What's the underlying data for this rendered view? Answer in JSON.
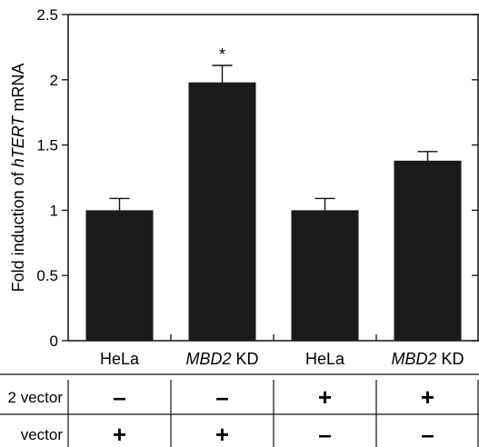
{
  "chart_data": {
    "type": "bar",
    "ylabel_parts": [
      "Fold induction of ",
      "hTERT",
      " mRNA"
    ],
    "ylim": [
      0,
      2.5
    ],
    "yticks": [
      "0",
      "0.5",
      "1",
      "1.5",
      "2",
      "2.5"
    ],
    "ytick_values": [
      0,
      0.5,
      1,
      1.5,
      2,
      2.5
    ],
    "categories": [
      {
        "italic": "",
        "text": "HeLa"
      },
      {
        "italic": "MBD2",
        "text": " KD"
      },
      {
        "italic": "",
        "text": "HeLa"
      },
      {
        "italic": "MBD2",
        "text": " KD"
      }
    ],
    "values": [
      1.0,
      1.98,
      1.0,
      1.38
    ],
    "errors": [
      0.09,
      0.13,
      0.09,
      0.07
    ],
    "annotations": [
      "",
      "*",
      "",
      ""
    ],
    "bar_color": "#1a1a1a",
    "grid": false
  },
  "condition_table": {
    "rows": [
      {
        "label": "2 vector",
        "marks": [
          "–",
          "–",
          "+",
          "+"
        ]
      },
      {
        "label": "vector",
        "marks": [
          "+",
          "+",
          "–",
          "–"
        ]
      }
    ]
  }
}
